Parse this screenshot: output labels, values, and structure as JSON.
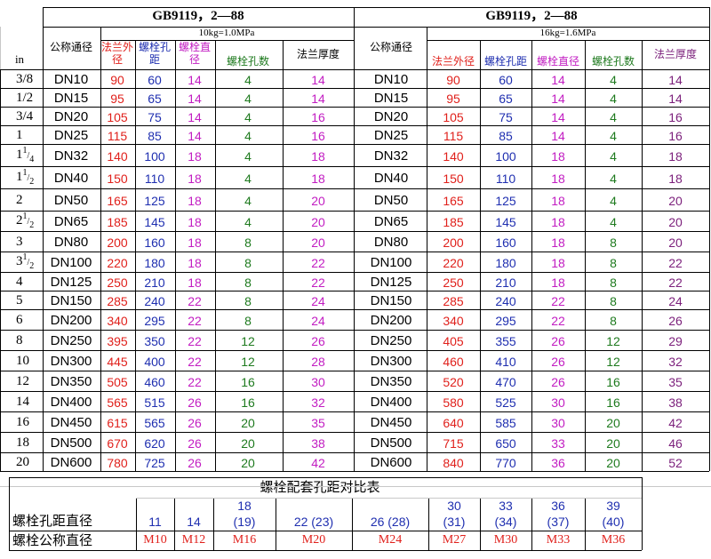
{
  "left": {
    "standard": "GB9119，2—88",
    "pressure": "10kg=1.0MPa",
    "headers": {
      "inch": "in",
      "nominal": "公称通径",
      "outer_dia": "法兰外径",
      "bolt_pcd": "螺栓孔距",
      "bolt_dia": "螺栓直径",
      "bolt_count": "螺栓孔数",
      "thickness": "法兰厚度"
    }
  },
  "right": {
    "standard": "GB9119，2—88",
    "pressure": "16kg=1.6MPa",
    "headers": {
      "nominal": "公称通径",
      "outer_dia": "法兰外径",
      "bolt_pcd": "螺栓孔距",
      "bolt_dia": "螺栓直径",
      "bolt_count": "螺栓孔数",
      "thickness": "法兰厚度"
    }
  },
  "rows": [
    {
      "inch": "3/8",
      "dn": "DN10",
      "l": [
        "90",
        "60",
        "14",
        "4",
        "14"
      ],
      "r": [
        "90",
        "60",
        "14",
        "4",
        "14"
      ]
    },
    {
      "inch": "1/2",
      "dn": "DN15",
      "l": [
        "95",
        "65",
        "14",
        "4",
        "14"
      ],
      "r": [
        "95",
        "65",
        "14",
        "4",
        "14"
      ]
    },
    {
      "inch": "3/4",
      "dn": "DN20",
      "l": [
        "105",
        "75",
        "14",
        "4",
        "16"
      ],
      "r": [
        "105",
        "75",
        "14",
        "4",
        "16"
      ]
    },
    {
      "inch": "1",
      "dn": "DN25",
      "l": [
        "115",
        "85",
        "14",
        "4",
        "16"
      ],
      "r": [
        "115",
        "85",
        "14",
        "4",
        "16"
      ]
    },
    {
      "inch_whole": "1",
      "inch_frac": "1",
      "inch_den": "4",
      "dn": "DN32",
      "l": [
        "140",
        "100",
        "18",
        "4",
        "18"
      ],
      "r": [
        "140",
        "100",
        "18",
        "4",
        "18"
      ]
    },
    {
      "inch_whole": "1",
      "inch_frac": "1",
      "inch_den": "2",
      "dn": "DN40",
      "l": [
        "150",
        "110",
        "18",
        "4",
        "18"
      ],
      "r": [
        "150",
        "110",
        "18",
        "4",
        "18"
      ]
    },
    {
      "inch": "2",
      "dn": "DN50",
      "l": [
        "165",
        "125",
        "18",
        "4",
        "20"
      ],
      "r": [
        "165",
        "125",
        "18",
        "4",
        "20"
      ]
    },
    {
      "inch_whole": "2",
      "inch_frac": "1",
      "inch_den": "2",
      "dn": "DN65",
      "l": [
        "185",
        "145",
        "18",
        "4",
        "20"
      ],
      "r": [
        "185",
        "145",
        "18",
        "4",
        "20"
      ]
    },
    {
      "inch": "3",
      "dn": "DN80",
      "l": [
        "200",
        "160",
        "18",
        "8",
        "20"
      ],
      "r": [
        "200",
        "160",
        "18",
        "8",
        "20"
      ]
    },
    {
      "inch_whole": "3",
      "inch_frac": "1",
      "inch_den": "2",
      "dn": "DN100",
      "l": [
        "220",
        "180",
        "18",
        "8",
        "22"
      ],
      "r": [
        "220",
        "180",
        "18",
        "8",
        "22"
      ]
    },
    {
      "inch": "4",
      "dn": "DN125",
      "l": [
        "250",
        "210",
        "18",
        "8",
        "22"
      ],
      "r": [
        "250",
        "210",
        "18",
        "8",
        "22"
      ]
    },
    {
      "inch": "5",
      "dn": "DN150",
      "l": [
        "285",
        "240",
        "22",
        "8",
        "24"
      ],
      "r": [
        "285",
        "240",
        "22",
        "8",
        "24"
      ]
    },
    {
      "inch": "6",
      "dn": "DN200",
      "l": [
        "340",
        "295",
        "22",
        "8",
        "24"
      ],
      "r": [
        "340",
        "295",
        "22",
        "8",
        "26"
      ]
    },
    {
      "inch": "8",
      "dn": "DN250",
      "l": [
        "395",
        "350",
        "22",
        "12",
        "26"
      ],
      "r": [
        "405",
        "355",
        "26",
        "12",
        "29"
      ]
    },
    {
      "inch": "10",
      "dn": "DN300",
      "l": [
        "445",
        "400",
        "22",
        "12",
        "28"
      ],
      "r": [
        "460",
        "410",
        "26",
        "12",
        "32"
      ]
    },
    {
      "inch": "12",
      "dn": "DN350",
      "l": [
        "505",
        "460",
        "22",
        "16",
        "30"
      ],
      "r": [
        "520",
        "470",
        "26",
        "16",
        "35"
      ]
    },
    {
      "inch": "14",
      "dn": "DN400",
      "l": [
        "565",
        "515",
        "26",
        "16",
        "32"
      ],
      "r": [
        "580",
        "525",
        "30",
        "16",
        "38"
      ]
    },
    {
      "inch": "16",
      "dn": "DN450",
      "l": [
        "615",
        "565",
        "26",
        "20",
        "35"
      ],
      "r": [
        "640",
        "585",
        "30",
        "20",
        "42"
      ]
    },
    {
      "inch": "18",
      "dn": "DN500",
      "l": [
        "670",
        "620",
        "26",
        "20",
        "38"
      ],
      "r": [
        "715",
        "650",
        "33",
        "20",
        "46"
      ]
    },
    {
      "inch": "20",
      "dn": "DN600",
      "l": [
        "780",
        "725",
        "26",
        "20",
        "42"
      ],
      "r": [
        "840",
        "770",
        "36",
        "20",
        "52"
      ]
    }
  ],
  "bolt_table": {
    "title": "螺栓配套孔距对比表",
    "row1_label": "螺栓孔距直径",
    "row2_label": "螺栓公称直径",
    "cols": [
      {
        "top": "",
        "bottom": "11",
        "size": "M10"
      },
      {
        "top": "",
        "bottom": "14",
        "size": "M12"
      },
      {
        "top": "18",
        "bottom": "(19)",
        "size": "M16"
      },
      {
        "top": "",
        "bottom": "22 (23)",
        "size": "M20"
      },
      {
        "top": "",
        "bottom": "26 (28)",
        "size": "M24"
      },
      {
        "top": "30",
        "bottom": "(31)",
        "size": "M27"
      },
      {
        "top": "33",
        "bottom": "(34)",
        "size": "M30"
      },
      {
        "top": "36",
        "bottom": "(37)",
        "size": "M33"
      },
      {
        "top": "39",
        "bottom": "(40)",
        "size": "M36"
      }
    ]
  }
}
